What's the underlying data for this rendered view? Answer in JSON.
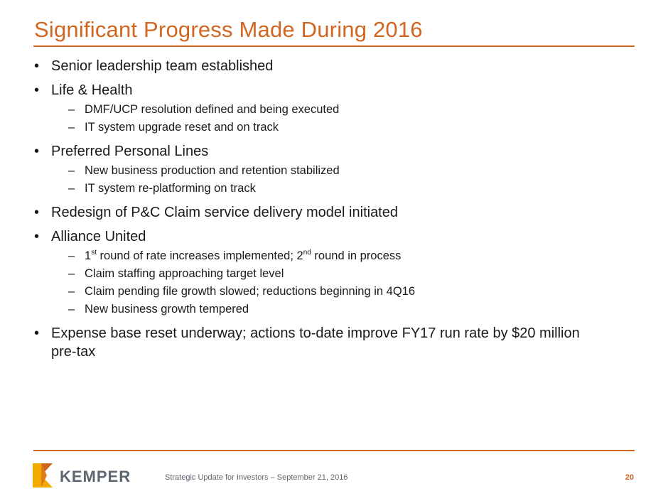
{
  "slide": {
    "title": "Significant Progress Made During 2016",
    "bullets": [
      {
        "text": "Senior leadership team established",
        "subs": []
      },
      {
        "text": "Life & Health",
        "subs": [
          {
            "parts": [
              {
                "t": "DMF/UCP resolution defined and being executed"
              }
            ]
          },
          {
            "parts": [
              {
                "t": "IT system upgrade reset and on track"
              }
            ]
          }
        ]
      },
      {
        "text": "Preferred Personal Lines",
        "subs": [
          {
            "parts": [
              {
                "t": "New business production and retention stabilized"
              }
            ]
          },
          {
            "parts": [
              {
                "t": "IT system re-platforming on track"
              }
            ]
          }
        ]
      },
      {
        "text": "Redesign of P&C Claim service delivery model initiated",
        "subs": []
      },
      {
        "text": "Alliance United",
        "subs": [
          {
            "parts": [
              {
                "t": "1"
              },
              {
                "t": "st",
                "sup": true
              },
              {
                "t": " round of rate increases implemented; 2"
              },
              {
                "t": "nd",
                "sup": true
              },
              {
                "t": " round in process"
              }
            ]
          },
          {
            "parts": [
              {
                "t": "Claim staffing approaching target level"
              }
            ]
          },
          {
            "parts": [
              {
                "t": "Claim pending file growth slowed; reductions beginning in 4Q16"
              }
            ]
          },
          {
            "parts": [
              {
                "t": "New business growth tempered"
              }
            ]
          }
        ]
      },
      {
        "text": "Expense base reset underway; actions to-date improve FY17 run rate by $20 million pre-tax",
        "subs": []
      }
    ]
  },
  "footer": {
    "logo_text": "KEMPER",
    "caption": "Strategic Update for Investors – September 21, 2016",
    "page_number": "20"
  },
  "colors": {
    "accent": "#d0661f",
    "logo_gold": "#f2a900",
    "logo_orange": "#d0661f",
    "logo_gray": "#5b6670"
  }
}
